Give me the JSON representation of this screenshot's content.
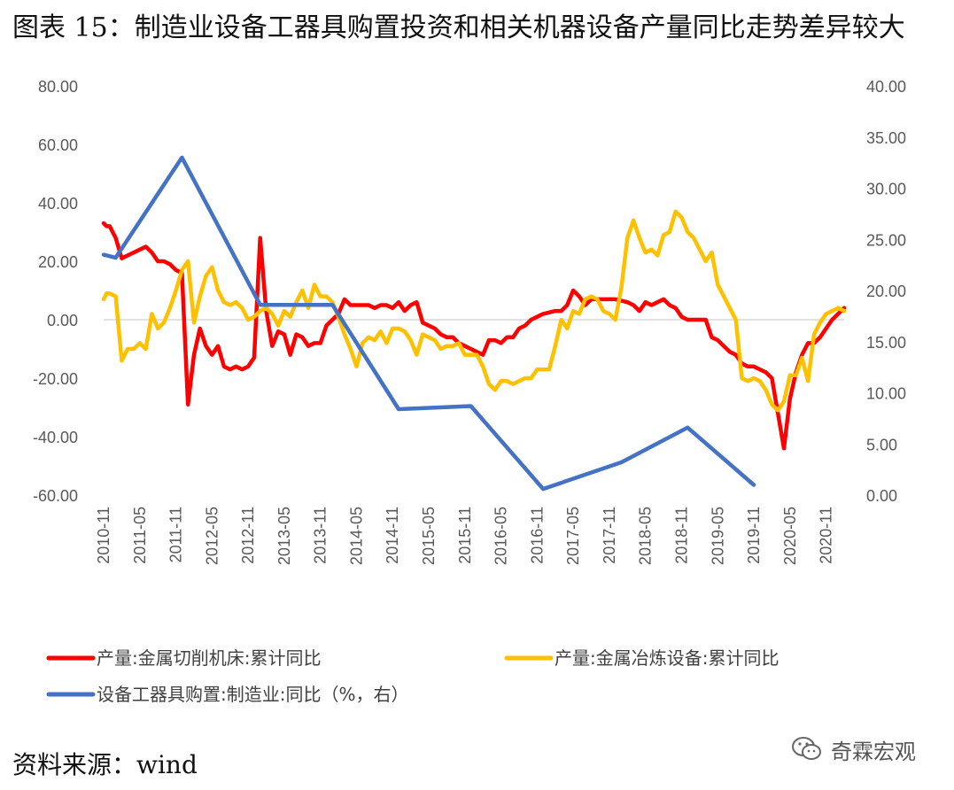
{
  "title": "图表 15：制造业设备工器具购置投资和相关机器设备产量同比走势差异较大",
  "source": "资料来源：wind",
  "watermark": {
    "text": "奇霖宏观",
    "icon": "wechat-icon"
  },
  "chart_data": {
    "type": "line",
    "x_labels": [
      "2010-11",
      "2011-05",
      "2011-11",
      "2012-05",
      "2012-11",
      "2013-05",
      "2013-11",
      "2014-05",
      "2014-11",
      "2015-05",
      "2015-11",
      "2016-05",
      "2016-11",
      "2017-05",
      "2017-11",
      "2018-05",
      "2018-11",
      "2019-05",
      "2019-11",
      "2020-05",
      "2020-11"
    ],
    "y_left": {
      "min": -60,
      "max": 80,
      "step": 20,
      "tick_labels": [
        "80.00",
        "60.00",
        "40.00",
        "20.00",
        "0.00",
        "-20.00",
        "-40.00",
        "-60.00"
      ]
    },
    "y_right": {
      "min": 0,
      "max": 40,
      "step": 5,
      "tick_labels": [
        "40.00",
        "35.00",
        "30.00",
        "25.00",
        "20.00",
        "15.00",
        "10.00",
        "5.00",
        "0.00"
      ]
    },
    "legend": [
      {
        "name": "产量:金属切削机床:累计同比",
        "color": "#ff0000"
      },
      {
        "name": "产量:金属冶炼设备:累计同比",
        "color": "#ffc000"
      },
      {
        "name": "设备工器具购置:制造业:同比（%，右）",
        "color": "#4472c4"
      }
    ],
    "series": [
      {
        "name": "产量:金属切削机床:累计同比",
        "color": "#ff0000",
        "axis": "left",
        "points": [
          [
            0,
            33
          ],
          [
            0.5,
            32
          ],
          [
            1,
            32
          ],
          [
            2,
            28
          ],
          [
            3,
            21
          ],
          [
            4,
            22
          ],
          [
            5,
            23
          ],
          [
            6,
            24
          ],
          [
            7,
            25
          ],
          [
            8,
            23
          ],
          [
            9,
            20
          ],
          [
            10,
            20
          ],
          [
            11,
            19
          ],
          [
            12,
            17
          ],
          [
            13,
            16
          ],
          [
            14,
            -29
          ],
          [
            15,
            -12
          ],
          [
            16,
            -3
          ],
          [
            17,
            -9
          ],
          [
            18,
            -12
          ],
          [
            19,
            -9
          ],
          [
            20,
            -16
          ],
          [
            21,
            -17
          ],
          [
            22,
            -16
          ],
          [
            23,
            -17
          ],
          [
            24,
            -16
          ],
          [
            25,
            -13
          ],
          [
            26,
            28
          ],
          [
            27,
            3
          ],
          [
            28,
            -9
          ],
          [
            29,
            -4
          ],
          [
            30,
            -5
          ],
          [
            31,
            -12
          ],
          [
            32,
            -5
          ],
          [
            33,
            -6
          ],
          [
            34,
            -9
          ],
          [
            35,
            -8
          ],
          [
            36,
            -8
          ],
          [
            37,
            -2
          ],
          [
            38,
            0
          ],
          [
            39,
            2
          ],
          [
            40,
            7
          ],
          [
            41,
            5
          ],
          [
            42,
            5
          ],
          [
            43,
            5
          ],
          [
            44,
            5
          ],
          [
            45,
            4
          ],
          [
            46,
            5
          ],
          [
            47,
            5
          ],
          [
            48,
            4
          ],
          [
            49,
            6
          ],
          [
            50,
            3
          ],
          [
            51,
            5
          ],
          [
            52,
            6
          ],
          [
            53,
            -1
          ],
          [
            54,
            -2
          ],
          [
            55,
            -3
          ],
          [
            56,
            -5
          ],
          [
            57,
            -6
          ],
          [
            58,
            -6
          ],
          [
            59,
            -8
          ],
          [
            60,
            -9
          ],
          [
            61,
            -10
          ],
          [
            62,
            -11
          ],
          [
            63,
            -12
          ],
          [
            64,
            -7
          ],
          [
            65,
            -7
          ],
          [
            66,
            -8
          ],
          [
            67,
            -6
          ],
          [
            68,
            -6
          ],
          [
            69,
            -3
          ],
          [
            70,
            -2
          ],
          [
            71,
            0
          ],
          [
            72,
            1
          ],
          [
            73,
            2
          ],
          [
            74,
            2.5
          ],
          [
            75,
            3
          ],
          [
            76,
            3
          ],
          [
            77,
            5
          ],
          [
            78,
            10
          ],
          [
            79,
            8
          ],
          [
            80,
            5
          ],
          [
            81,
            7
          ],
          [
            82,
            7
          ],
          [
            83,
            7
          ],
          [
            84,
            7
          ],
          [
            85,
            7
          ],
          [
            86,
            6.5
          ],
          [
            87,
            6
          ],
          [
            88,
            5
          ],
          [
            89,
            3
          ],
          [
            90,
            6
          ],
          [
            91,
            5
          ],
          [
            92,
            6
          ],
          [
            93,
            7
          ],
          [
            94,
            5
          ],
          [
            95,
            4
          ],
          [
            96,
            1
          ],
          [
            97,
            0
          ],
          [
            98,
            0
          ],
          [
            99,
            0
          ],
          [
            100,
            0
          ],
          [
            101,
            -6
          ],
          [
            102,
            -7
          ],
          [
            103,
            -9
          ],
          [
            104,
            -11
          ],
          [
            105,
            -12
          ],
          [
            106,
            -15
          ],
          [
            107,
            -16
          ],
          [
            108,
            -16
          ],
          [
            109,
            -17
          ],
          [
            110,
            -18
          ],
          [
            111,
            -20
          ],
          [
            112,
            -32
          ],
          [
            113,
            -44
          ],
          [
            114,
            -27
          ],
          [
            115,
            -18
          ],
          [
            116,
            -12
          ],
          [
            117,
            -8
          ],
          [
            118,
            -8
          ],
          [
            119,
            -6
          ],
          [
            120,
            -3
          ],
          [
            121,
            0
          ],
          [
            122,
            2
          ],
          [
            123,
            4
          ]
        ]
      },
      {
        "name": "产量:金属冶炼设备:累计同比",
        "color": "#ffc000",
        "axis": "left",
        "points": [
          [
            0,
            7
          ],
          [
            0.5,
            9
          ],
          [
            1,
            9
          ],
          [
            2,
            8
          ],
          [
            3,
            -14
          ],
          [
            4,
            -10
          ],
          [
            5,
            -10
          ],
          [
            6,
            -8
          ],
          [
            7,
            -10
          ],
          [
            8,
            2
          ],
          [
            9,
            -3
          ],
          [
            10,
            -1
          ],
          [
            11,
            4
          ],
          [
            12,
            10
          ],
          [
            13,
            17
          ],
          [
            14,
            20
          ],
          [
            15,
            -1
          ],
          [
            16,
            8
          ],
          [
            17,
            15
          ],
          [
            18,
            18
          ],
          [
            19,
            10
          ],
          [
            20,
            6
          ],
          [
            21,
            5
          ],
          [
            22,
            6
          ],
          [
            23,
            4
          ],
          [
            24,
            0
          ],
          [
            25,
            1
          ],
          [
            26,
            3
          ],
          [
            27,
            4
          ],
          [
            28,
            2
          ],
          [
            29,
            -2
          ],
          [
            30,
            3
          ],
          [
            31,
            1
          ],
          [
            32,
            6
          ],
          [
            33,
            10
          ],
          [
            34,
            4
          ],
          [
            35,
            12
          ],
          [
            36,
            8
          ],
          [
            37,
            8
          ],
          [
            38,
            6
          ],
          [
            39,
            1
          ],
          [
            40,
            -5
          ],
          [
            41,
            -10
          ],
          [
            42,
            -16
          ],
          [
            43,
            -8
          ],
          [
            44,
            -6
          ],
          [
            45,
            -7
          ],
          [
            46,
            -4
          ],
          [
            47,
            -8
          ],
          [
            48,
            -3
          ],
          [
            49,
            -3
          ],
          [
            50,
            -4
          ],
          [
            51,
            -7
          ],
          [
            52,
            -12
          ],
          [
            53,
            -5
          ],
          [
            54,
            -6
          ],
          [
            55,
            -7
          ],
          [
            56,
            -10
          ],
          [
            57,
            -9
          ],
          [
            58,
            -9
          ],
          [
            59,
            -8
          ],
          [
            60,
            -12
          ],
          [
            61,
            -12
          ],
          [
            62,
            -12
          ],
          [
            63,
            -16
          ],
          [
            64,
            -22
          ],
          [
            65,
            -24
          ],
          [
            66,
            -21
          ],
          [
            67,
            -21
          ],
          [
            68,
            -22
          ],
          [
            69,
            -21
          ],
          [
            70,
            -20
          ],
          [
            71,
            -20
          ],
          [
            72,
            -17
          ],
          [
            73,
            -17
          ],
          [
            74,
            -17
          ],
          [
            75,
            -9
          ],
          [
            76,
            0
          ],
          [
            77,
            -3
          ],
          [
            78,
            3
          ],
          [
            79,
            2
          ],
          [
            80,
            7
          ],
          [
            81,
            8
          ],
          [
            82,
            7
          ],
          [
            83,
            3
          ],
          [
            84,
            2
          ],
          [
            85,
            0
          ],
          [
            86,
            11
          ],
          [
            87,
            28
          ],
          [
            88,
            34
          ],
          [
            89,
            28
          ],
          [
            90,
            23
          ],
          [
            91,
            24
          ],
          [
            92,
            22
          ],
          [
            93,
            29
          ],
          [
            94,
            30
          ],
          [
            95,
            37
          ],
          [
            96,
            35
          ],
          [
            97,
            30
          ],
          [
            98,
            28
          ],
          [
            99,
            24
          ],
          [
            100,
            20
          ],
          [
            101,
            23
          ],
          [
            102,
            12
          ],
          [
            103,
            8
          ],
          [
            104,
            4
          ],
          [
            105,
            0
          ],
          [
            106,
            -20
          ],
          [
            107,
            -21
          ],
          [
            108,
            -20
          ],
          [
            109,
            -21
          ],
          [
            110,
            -24
          ],
          [
            111,
            -29
          ],
          [
            112,
            -31
          ],
          [
            113,
            -28
          ],
          [
            114,
            -19
          ],
          [
            115,
            -19
          ],
          [
            116,
            -13
          ],
          [
            117,
            -21
          ],
          [
            118,
            -5
          ],
          [
            119,
            -1
          ],
          [
            120,
            2
          ],
          [
            121,
            3
          ],
          [
            122,
            4
          ],
          [
            123,
            3
          ]
        ]
      },
      {
        "name": "设备工器具购置:制造业:同比（%，右）",
        "color": "#4472c4",
        "axis": "right",
        "points": [
          [
            0,
            23.5
          ],
          [
            2,
            23.2
          ],
          [
            13,
            33
          ],
          [
            26,
            18.6
          ],
          [
            38,
            18.6
          ],
          [
            49,
            8.4
          ],
          [
            61,
            8.7
          ],
          [
            73,
            0.6
          ],
          [
            86,
            3.2
          ],
          [
            97,
            6.6
          ],
          [
            108,
            1.0
          ]
        ]
      }
    ]
  }
}
